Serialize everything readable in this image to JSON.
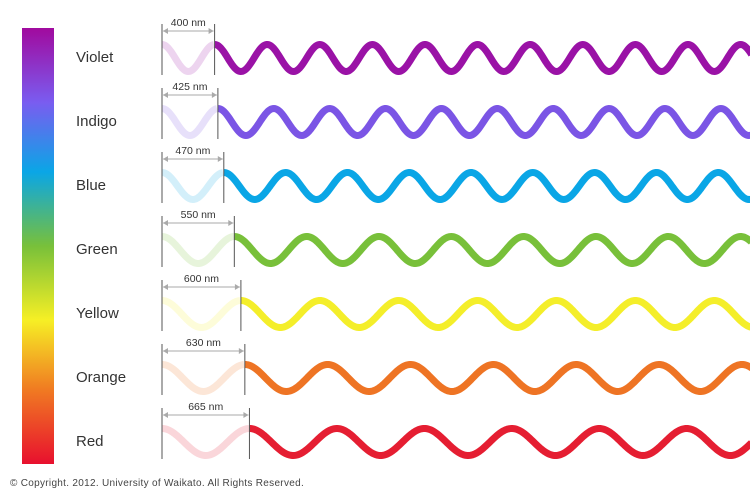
{
  "colors": [
    {
      "name": "Violet",
      "wavelength": "400 nm",
      "wavelength_nm": 400,
      "hex": "#9a12a6"
    },
    {
      "name": "Indigo",
      "wavelength": "425 nm",
      "wavelength_nm": 425,
      "hex": "#7b55e5"
    },
    {
      "name": "Blue",
      "wavelength": "470 nm",
      "wavelength_nm": 470,
      "hex": "#0aa6e6"
    },
    {
      "name": "Green",
      "wavelength": "550 nm",
      "wavelength_nm": 550,
      "hex": "#78c03a"
    },
    {
      "name": "Yellow",
      "wavelength": "600 nm",
      "wavelength_nm": 600,
      "hex": "#f4ee2a"
    },
    {
      "name": "Orange",
      "wavelength": "630 nm",
      "wavelength_nm": 630,
      "hex": "#ee7424"
    },
    {
      "name": "Red",
      "wavelength": "665 nm",
      "wavelength_nm": 665,
      "hex": "#e51e32"
    }
  ],
  "spectrum_gradient": [
    "#a10a9e",
    "#7a5cf0",
    "#0aa6e6",
    "#78c03a",
    "#f6ef25",
    "#f07a22",
    "#e8102e"
  ],
  "copyright": "© Copyright. 2012. University of Waikato. All Rights Reserved."
}
